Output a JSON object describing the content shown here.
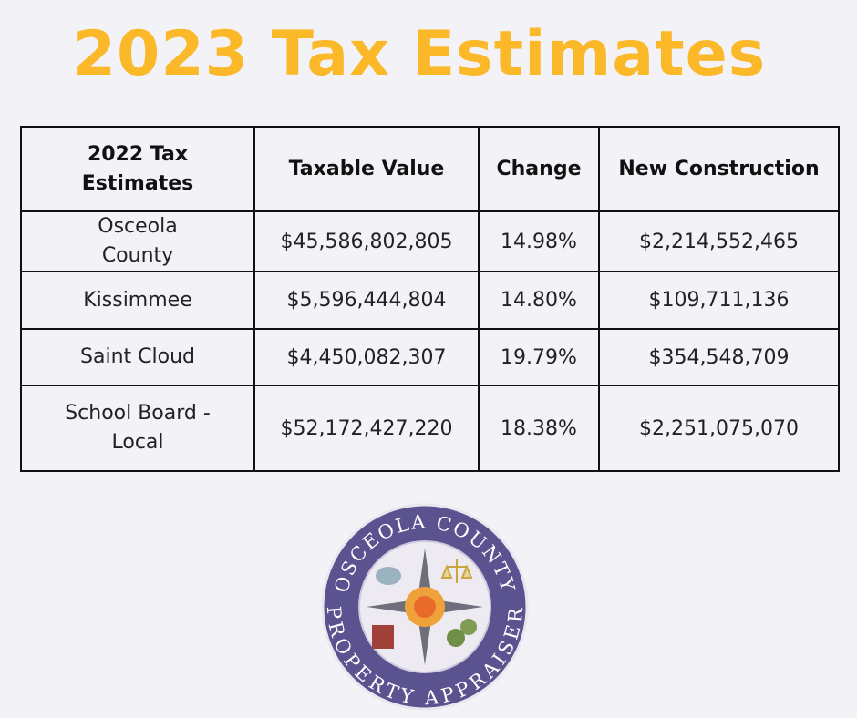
{
  "header": {
    "title": "2023 Tax Estimates"
  },
  "table": {
    "columns": [
      "2022 Tax Estimates",
      "Taxable Value",
      "Change",
      "New Construction"
    ],
    "rows": [
      [
        "Osceola County",
        "$45,586,802,805",
        "14.98%",
        "$2,214,552,465"
      ],
      [
        "Kissimmee",
        "$5,596,444,804",
        "14.80%",
        "$109,711,136"
      ],
      [
        "Saint Cloud",
        "$4,450,082,307",
        "19.79%",
        "$354,548,709"
      ],
      [
        "School Board - Local",
        "$52,172,427,220",
        "18.38%",
        "$2,251,075,070"
      ]
    ]
  },
  "seal": {
    "top_text": "OSCEOLA COUNTY",
    "bottom_text": "PROPERTY APPRAISER"
  }
}
